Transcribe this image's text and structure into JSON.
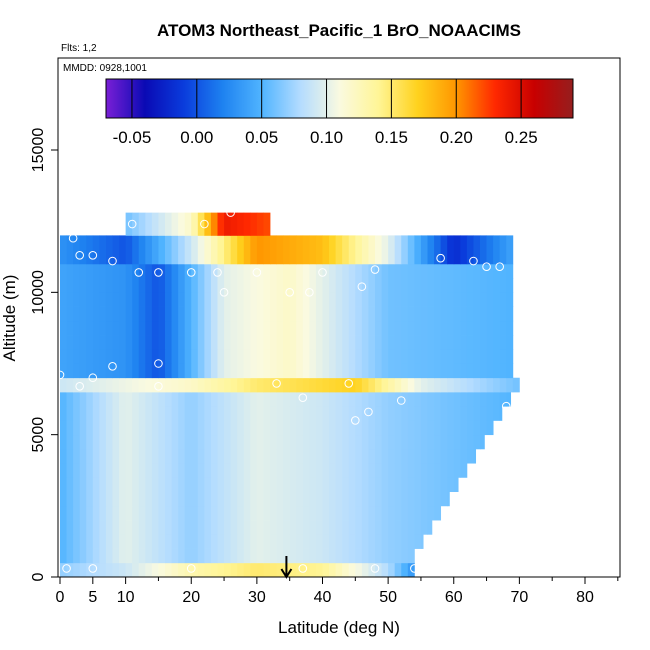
{
  "chart_data": {
    "type": "heatmap",
    "title": "ATOM3 Northeast_Pacific_1 BrO_NOAACIMS",
    "flights_label": "Flts: 1,2",
    "mmdd_label": "MMDD: 0928,1001",
    "xlabel": "Latitude (deg N)",
    "ylabel": "Altitude (m)",
    "xlim": [
      0,
      85
    ],
    "ylim": [
      0,
      17500
    ],
    "x_ticks": [
      0,
      10,
      20,
      30,
      40,
      50,
      60,
      70,
      80
    ],
    "x_ticks_minor": [
      5
    ],
    "x_tick_labels": [
      "0",
      "5",
      "10",
      "20",
      "30",
      "40",
      "50",
      "60",
      "70",
      "80"
    ],
    "y_ticks": [
      0,
      5000,
      10000,
      15000
    ],
    "y_tick_labels": [
      "0",
      "5000",
      "10000",
      "15000"
    ],
    "colorbar": {
      "min": -0.07,
      "max": 0.29,
      "ticks": [
        -0.05,
        0.0,
        0.05,
        0.1,
        0.15,
        0.2,
        0.25
      ],
      "tick_labels": [
        "-0.05",
        "0.00",
        "0.05",
        "0.10",
        "0.15",
        "0.20",
        "0.25"
      ],
      "colors": [
        "#7a1fd6",
        "#0a0ab4",
        "#0a3cdc",
        "#1e82f0",
        "#50b4ff",
        "#b4dcff",
        "#fafae0",
        "#fff596",
        "#ffd21e",
        "#ff9600",
        "#ff2800",
        "#c80000",
        "#961e1e"
      ]
    },
    "marker_latitude": 34.5,
    "value_bands": [
      {
        "alt_range": [
          0,
          500
        ],
        "values_by_lat": [
          [
            0,
            0.07
          ],
          [
            10,
            0.09
          ],
          [
            20,
            0.13
          ],
          [
            30,
            0.15
          ],
          [
            40,
            0.14
          ],
          [
            50,
            0.08
          ],
          [
            54,
            0.03
          ]
        ]
      },
      {
        "alt_range": [
          500,
          6500
        ],
        "values_by_lat": [
          [
            0,
            0.05
          ],
          [
            10,
            0.1
          ],
          [
            20,
            0.07
          ],
          [
            30,
            0.1
          ],
          [
            40,
            0.09
          ],
          [
            50,
            0.07
          ],
          [
            70,
            0.05
          ]
        ]
      },
      {
        "alt_range": [
          6500,
          7000
        ],
        "values_by_lat": [
          [
            0,
            0.09
          ],
          [
            20,
            0.12
          ],
          [
            30,
            0.15
          ],
          [
            45,
            0.17
          ],
          [
            55,
            0.1
          ],
          [
            70,
            0.06
          ]
        ]
      },
      {
        "alt_range": [
          7000,
          11000
        ],
        "values_by_lat": [
          [
            0,
            0.04
          ],
          [
            10,
            0.03
          ],
          [
            15,
            0.0
          ],
          [
            25,
            0.1
          ],
          [
            35,
            0.12
          ],
          [
            50,
            0.06
          ],
          [
            69,
            0.05
          ]
        ]
      },
      {
        "alt_range": [
          11000,
          12000
        ],
        "values_by_lat": [
          [
            0,
            0.03
          ],
          [
            10,
            0.0
          ],
          [
            20,
            0.09
          ],
          [
            30,
            0.2
          ],
          [
            40,
            0.18
          ],
          [
            50,
            0.1
          ],
          [
            60,
            -0.02
          ],
          [
            69,
            0.04
          ]
        ]
      },
      {
        "alt_range": [
          12000,
          12800
        ],
        "values_by_lat": [
          [
            10,
            0.06
          ],
          [
            20,
            0.12
          ],
          [
            25,
            0.24
          ],
          [
            32,
            0.22
          ]
        ]
      }
    ]
  }
}
